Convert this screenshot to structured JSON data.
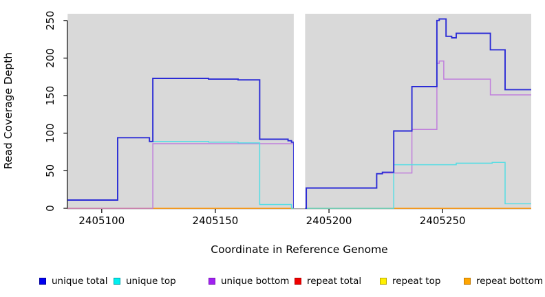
{
  "chart_data": {
    "type": "line",
    "step": "after",
    "title": "",
    "xlabel": "Coordinate in Reference Genome",
    "ylabel": "Read Coverage Depth",
    "xlim": [
      2405085,
      2405289
    ],
    "ylim": [
      0,
      259
    ],
    "x_ticks": [
      2405100,
      2405150,
      2405200,
      2405250
    ],
    "y_ticks": [
      0,
      50,
      100,
      150,
      200,
      250
    ],
    "grid": false,
    "plot_bg": "#d9d9d9",
    "data_gap_x": [
      2405184.5,
      2405189.5
    ],
    "legend_position": "bottom",
    "draw_order": [
      3,
      4,
      5,
      2,
      1,
      0
    ],
    "series": [
      {
        "name": "unique total",
        "line_color": "#2b2bd6",
        "legend_fill": "#0000f0",
        "legend_border": "#0000a0",
        "line_width": 1.9,
        "segments": [
          [
            [
              2405085,
              11
            ],
            [
              2405107,
              94
            ],
            [
              2405121,
              89
            ],
            [
              2405122.5,
              173
            ],
            [
              2405147,
              172
            ],
            [
              2405160,
              171
            ],
            [
              2405169.5,
              92
            ],
            [
              2405182,
              90
            ],
            [
              2405183.5,
              88
            ],
            [
              2405184.5,
              0
            ]
          ],
          [
            [
              2405189.5,
              0
            ],
            [
              2405190,
              27
            ],
            [
              2405221,
              46
            ],
            [
              2405223.5,
              48
            ],
            [
              2405228.5,
              103
            ],
            [
              2405236.5,
              162
            ],
            [
              2405247.5,
              250
            ],
            [
              2405248.5,
              252
            ],
            [
              2405251.5,
              229
            ],
            [
              2405254,
              227
            ],
            [
              2405256,
              233
            ],
            [
              2405271,
              211
            ],
            [
              2405277.5,
              158
            ],
            [
              2405289,
              158
            ]
          ]
        ]
      },
      {
        "name": "unique top",
        "line_color": "#55dde4",
        "legend_fill": "#00efef",
        "legend_border": "#00a0a8",
        "line_width": 1.5,
        "segments": [
          [
            [
              2405085,
              11
            ],
            [
              2405107,
              94
            ],
            [
              2405121,
              89
            ],
            [
              2405147,
              88
            ],
            [
              2405160,
              87
            ],
            [
              2405169.5,
              5
            ],
            [
              2405183.5,
              0
            ],
            [
              2405184.5,
              0
            ]
          ],
          [
            [
              2405189.5,
              0
            ],
            [
              2405228.5,
              58
            ],
            [
              2405256,
              60
            ],
            [
              2405271.8,
              61
            ],
            [
              2405277.5,
              6
            ],
            [
              2405289,
              6
            ]
          ]
        ]
      },
      {
        "name": "unique bottom",
        "line_color": "#c07fdc",
        "legend_fill": "#a020f0",
        "legend_border": "#7a18b8",
        "line_width": 1.5,
        "segments": [
          [
            [
              2405085,
              0
            ],
            [
              2405122.5,
              86
            ],
            [
              2405184.5,
              0
            ]
          ],
          [
            [
              2405189.5,
              0
            ],
            [
              2405190,
              27
            ],
            [
              2405221,
              46
            ],
            [
              2405223.5,
              47
            ],
            [
              2405236.5,
              105
            ],
            [
              2405247.5,
              193
            ],
            [
              2405248.5,
              196
            ],
            [
              2405250.5,
              172
            ],
            [
              2405271,
              151
            ],
            [
              2405289,
              151
            ]
          ]
        ]
      },
      {
        "name": "repeat total",
        "line_color": "#e03050",
        "legend_fill": "#f00000",
        "legend_border": "#b00000",
        "line_width": 1.5,
        "segments": [
          [
            [
              2405085,
              0
            ],
            [
              2405184.5,
              0
            ]
          ],
          [
            [
              2405189.5,
              0
            ],
            [
              2405289,
              0
            ]
          ]
        ]
      },
      {
        "name": "repeat top",
        "line_color": "#ffe800",
        "legend_fill": "#fff000",
        "legend_border": "#b8a800",
        "line_width": 1.5,
        "segments": [
          [
            [
              2405085,
              0
            ],
            [
              2405184.5,
              0
            ]
          ],
          [
            [
              2405189.5,
              0
            ],
            [
              2405289,
              0
            ]
          ]
        ]
      },
      {
        "name": "repeat bottom",
        "line_color": "#ff9d23",
        "legend_fill": "#ffa500",
        "legend_border": "#c07800",
        "line_width": 1.5,
        "segments": [
          [
            [
              2405085,
              0
            ],
            [
              2405184.5,
              0
            ]
          ],
          [
            [
              2405189.5,
              0
            ],
            [
              2405289,
              0
            ]
          ]
        ]
      }
    ]
  }
}
